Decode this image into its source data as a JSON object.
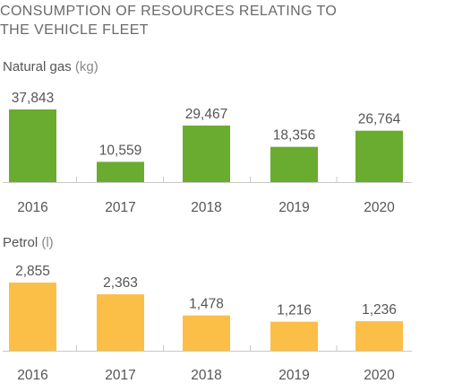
{
  "title": {
    "line1": "CONSUMPTION OF RESOURCES RELATING TO",
    "line2": "THE VEHICLE FLEET"
  },
  "colors": {
    "gas_bar": "#6aac2f",
    "petrol_bar": "#fbbf47",
    "axis": "#c8c8c8"
  },
  "chart_data": [
    {
      "type": "bar",
      "title": "Natural gas",
      "unit": "(kg)",
      "categories": [
        "2016",
        "2017",
        "2018",
        "2019",
        "2020"
      ],
      "values": [
        37843,
        10559,
        29467,
        18356,
        26764
      ],
      "value_labels": [
        "37,843",
        "10,559",
        "29,467",
        "18,356",
        "26,764"
      ],
      "ylim": [
        0,
        37843
      ],
      "grid": false,
      "color": "#6aac2f"
    },
    {
      "type": "bar",
      "title": "Petrol",
      "unit": "(l)",
      "categories": [
        "2016",
        "2017",
        "2018",
        "2019",
        "2020"
      ],
      "values": [
        2855,
        2363,
        1478,
        1216,
        1236
      ],
      "value_labels": [
        "2,855",
        "2,363",
        "1,478",
        "1,216",
        "1,236"
      ],
      "ylim": [
        0,
        2855
      ],
      "grid": false,
      "color": "#fbbf47"
    }
  ]
}
